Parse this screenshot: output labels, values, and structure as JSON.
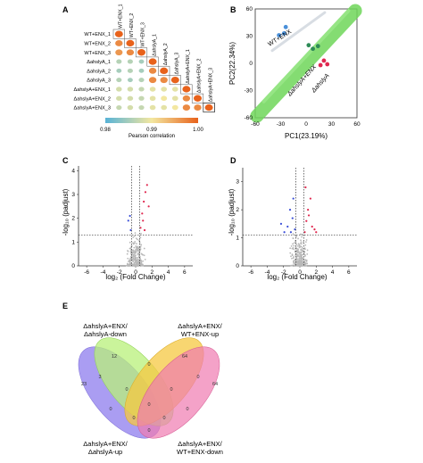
{
  "panels": {
    "A": {
      "letter": "A",
      "row_labels": [
        "WT+ENX_1",
        "WT+ENX_2",
        "WT+ENX_3",
        "ΔahslyA_1",
        "ΔahslyA_2",
        "ΔahslyA_3",
        "ΔahslyA+ENX_1",
        "ΔahslyA+ENX_2",
        "ΔahslyA+ENX_3"
      ],
      "col_labels": [
        "WT+ENX_1",
        "WT+ENX_2",
        "WT+ENX_3",
        "ΔahslyA_1",
        "ΔahslyA_2",
        "ΔahslyA_3",
        "ΔahslyA+ENX_1",
        "ΔahslyA+ENX_2",
        "ΔahslyA+ENX_3"
      ],
      "colorbar_ticks": [
        "0.98",
        "0.99",
        "1.00"
      ],
      "colorbar_label": "Pearson correlation",
      "colors": {
        "high": "#e8621b",
        "mid": "#f3e7a0",
        "low": "#58b3d7"
      }
    },
    "B": {
      "letter": "B",
      "xlabel": "PC1(23.19%)",
      "ylabel": "PC2(22.34%)",
      "group_labels": [
        "WT+ENX",
        "ΔahslyA+ENX",
        "ΔahslyA"
      ],
      "x_ticks": [
        "-60",
        "-30",
        "0",
        "30",
        "60"
      ],
      "y_ticks": [
        "-60",
        "-30",
        "0",
        "30",
        "60"
      ],
      "colors": {
        "band": "#6fd75a",
        "wt": "#4a90d9",
        "ko": "#2e8b57",
        "ko_enx": "#e0284f"
      }
    },
    "C": {
      "letter": "C",
      "xlabel": "log₂ (Fold Change)",
      "ylabel": "-log₁₀ (padjust)",
      "x_ticks": [
        "-6",
        "-4",
        "-2",
        "0",
        "2",
        "4",
        "6"
      ],
      "y_ticks": [
        "0",
        "1",
        "2",
        "3",
        "4"
      ]
    },
    "D": {
      "letter": "D",
      "xlabel": "log₂ (Fold Change)",
      "ylabel": "-log₁₀ (padjust)",
      "x_ticks": [
        "-6",
        "-4",
        "-2",
        "0",
        "2",
        "4",
        "6"
      ],
      "y_ticks": [
        "0",
        "1",
        "2",
        "3"
      ]
    },
    "E": {
      "letter": "E",
      "set_labels": [
        [
          "ΔahslyA+ENX/",
          "ΔahslyA-down"
        ],
        [
          "ΔahslyA+ENX/",
          "WT+ENX-up"
        ],
        [
          "ΔahslyA+ENX/",
          "ΔahslyA-up"
        ],
        [
          "ΔahslyA+ENX/",
          "WT+ENX-down"
        ]
      ],
      "region_counts": [
        "12",
        "64",
        "23",
        "64",
        "0",
        "3",
        "0",
        "0",
        "0",
        "0",
        "0",
        "0",
        "0",
        "0",
        "0"
      ],
      "colors": {
        "s1": "#9b8cf0",
        "s2": "#b8f07a",
        "s3": "#f5c842",
        "s4": "#f07ab0"
      }
    }
  },
  "chart_data": [
    {
      "type": "heatmap",
      "title": "",
      "rows": [
        "WT+ENX_1",
        "WT+ENX_2",
        "WT+ENX_3",
        "ΔahslyA_1",
        "ΔahslyA_2",
        "ΔahslyA_3",
        "ΔahslyA+ENX_1",
        "ΔahslyA+ENX_2",
        "ΔahslyA+ENX_3"
      ],
      "values_lower_triangle": [
        [
          1.0
        ],
        [
          0.997,
          1.0
        ],
        [
          0.996,
          0.997,
          1.0
        ],
        [
          0.986,
          0.986,
          0.985,
          1.0
        ],
        [
          0.985,
          0.986,
          0.985,
          0.997,
          1.0
        ],
        [
          0.986,
          0.985,
          0.986,
          0.997,
          0.997,
          1.0
        ],
        [
          0.988,
          0.988,
          0.987,
          0.989,
          0.989,
          0.989,
          1.0
        ],
        [
          0.988,
          0.988,
          0.987,
          0.989,
          0.99,
          0.989,
          0.997,
          1.0
        ],
        [
          0.987,
          0.988,
          0.987,
          0.989,
          0.989,
          0.99,
          0.997,
          0.997,
          1.0
        ]
      ],
      "colorbar_range": [
        0.98,
        1.0
      ]
    },
    {
      "type": "scatter",
      "xlabel": "PC1(23.19%)",
      "ylabel": "PC2(22.34%)",
      "xlim": [
        -60,
        60
      ],
      "ylim": [
        -60,
        60
      ],
      "series": [
        {
          "name": "WT+ENX",
          "points": [
            [
              -32,
              31
            ],
            [
              -26,
              33
            ],
            [
              -24,
              40
            ]
          ]
        },
        {
          "name": "ΔahslyA+ENX",
          "points": [
            [
              3,
              20
            ],
            [
              8,
              16
            ],
            [
              14,
              19
            ]
          ]
        },
        {
          "name": "ΔahslyA",
          "points": [
            [
              17,
              -2
            ],
            [
              21,
              3
            ],
            [
              25,
              -1
            ]
          ]
        }
      ]
    },
    {
      "type": "scatter",
      "xlabel": "log₂ (Fold Change)",
      "ylabel": "-log₁₀ (padjust)",
      "xlim": [
        -7,
        7
      ],
      "ylim": [
        0,
        4.2
      ],
      "thresholds": {
        "x": [
          -0.5,
          0.5
        ],
        "y": 1.3
      },
      "up_points": [
        [
          0.6,
          1.6
        ],
        [
          0.8,
          2.2
        ],
        [
          1.0,
          2.7
        ],
        [
          1.2,
          3.1
        ],
        [
          1.4,
          3.4
        ],
        [
          0.9,
          1.9
        ],
        [
          1.6,
          2.5
        ],
        [
          1.1,
          1.5
        ]
      ],
      "down_points": [
        [
          -0.6,
          1.5
        ],
        [
          -0.9,
          1.9
        ],
        [
          -0.7,
          2.1
        ]
      ],
      "other_points_count_description": ""
    },
    {
      "type": "scatter",
      "xlabel": "log₂ (Fold Change)",
      "ylabel": "-log₁₀ (padjust)",
      "xlim": [
        -7,
        7
      ],
      "ylim": [
        0,
        3.5
      ],
      "thresholds": {
        "x": [
          -0.5,
          0.5
        ],
        "y": 1.1
      },
      "up_points": [
        [
          0.6,
          1.2
        ],
        [
          0.8,
          1.6
        ],
        [
          1.0,
          2.0
        ],
        [
          1.3,
          2.4
        ],
        [
          1.5,
          1.4
        ],
        [
          1.8,
          1.3
        ],
        [
          0.7,
          2.8
        ],
        [
          1.1,
          1.8
        ],
        [
          2.0,
          1.2
        ]
      ],
      "down_points": [
        [
          -0.6,
          1.3
        ],
        [
          -0.9,
          1.7
        ],
        [
          -1.2,
          2.0
        ],
        [
          -1.5,
          1.4
        ],
        [
          -0.8,
          2.4
        ],
        [
          -1.9,
          1.2
        ],
        [
          -2.3,
          1.5
        ],
        [
          -1.1,
          1.2
        ]
      ],
      "other_points_count_description": ""
    },
    {
      "type": "table",
      "title": "",
      "venn_sets": [
        "ΔahslyA+ENX/ΔahslyA-down",
        "ΔahslyA+ENX/WT+ENX-up",
        "ΔahslyA+ENX/ΔahslyA-up",
        "ΔahslyA+ENX/WT+ENX-down"
      ],
      "region_counts": [
        12,
        64,
        23,
        64,
        0,
        3,
        0,
        0,
        0,
        0,
        0,
        0,
        0,
        0,
        0
      ]
    }
  ]
}
